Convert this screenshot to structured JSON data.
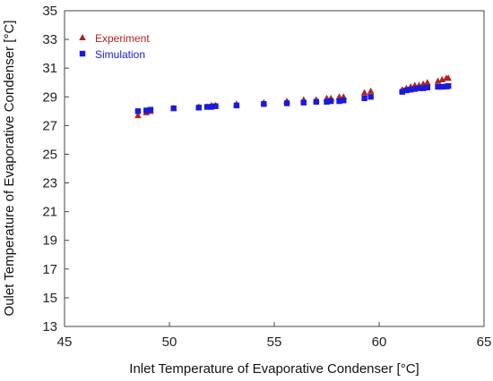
{
  "chart_data": {
    "type": "scatter",
    "xlabel": "Inlet Temperature of Evaporative Condenser [°C]",
    "ylabel": "Oulet Temperature of Evaporative Condenser [°C]",
    "xlim": [
      45,
      65
    ],
    "ylim": [
      13,
      35
    ],
    "x_ticks": [
      "45",
      "50",
      "55",
      "60",
      "65"
    ],
    "y_ticks": [
      "13",
      "15",
      "17",
      "19",
      "21",
      "23",
      "25",
      "27",
      "29",
      "31",
      "33",
      "35"
    ],
    "grid": false,
    "legend_position": "top-left",
    "series": [
      {
        "name": "Experiment",
        "marker": "triangle",
        "color": "#b22222",
        "x": [
          48.5,
          48.9,
          49.1,
          50.2,
          51.4,
          51.8,
          52.0,
          52.2,
          53.2,
          54.5,
          55.6,
          56.4,
          57.0,
          57.5,
          57.7,
          58.1,
          58.3,
          59.3,
          59.6,
          61.1,
          61.3,
          61.5,
          61.7,
          61.9,
          62.1,
          62.3,
          62.8,
          63.0,
          63.2,
          63.3
        ],
        "y": [
          27.7,
          27.9,
          28.0,
          28.2,
          28.3,
          28.3,
          28.4,
          28.4,
          28.5,
          28.6,
          28.7,
          28.8,
          28.8,
          28.9,
          28.9,
          29.0,
          29.0,
          29.3,
          29.4,
          29.5,
          29.6,
          29.7,
          29.8,
          29.8,
          29.9,
          30.0,
          30.1,
          30.2,
          30.3,
          30.3
        ]
      },
      {
        "name": "Simulation",
        "marker": "square",
        "color": "#1a1adc",
        "x": [
          48.5,
          48.9,
          49.1,
          50.2,
          51.4,
          51.8,
          52.0,
          52.2,
          53.2,
          54.5,
          55.6,
          56.4,
          57.0,
          57.5,
          57.7,
          58.1,
          58.3,
          59.3,
          59.6,
          61.1,
          61.3,
          61.5,
          61.7,
          61.9,
          62.1,
          62.3,
          62.8,
          63.0,
          63.2,
          63.3
        ],
        "y": [
          28.0,
          28.05,
          28.1,
          28.2,
          28.25,
          28.3,
          28.3,
          28.35,
          28.4,
          28.5,
          28.55,
          28.6,
          28.65,
          28.65,
          28.7,
          28.7,
          28.75,
          28.9,
          29.0,
          29.35,
          29.45,
          29.5,
          29.55,
          29.6,
          29.6,
          29.65,
          29.7,
          29.7,
          29.72,
          29.75
        ]
      }
    ]
  }
}
